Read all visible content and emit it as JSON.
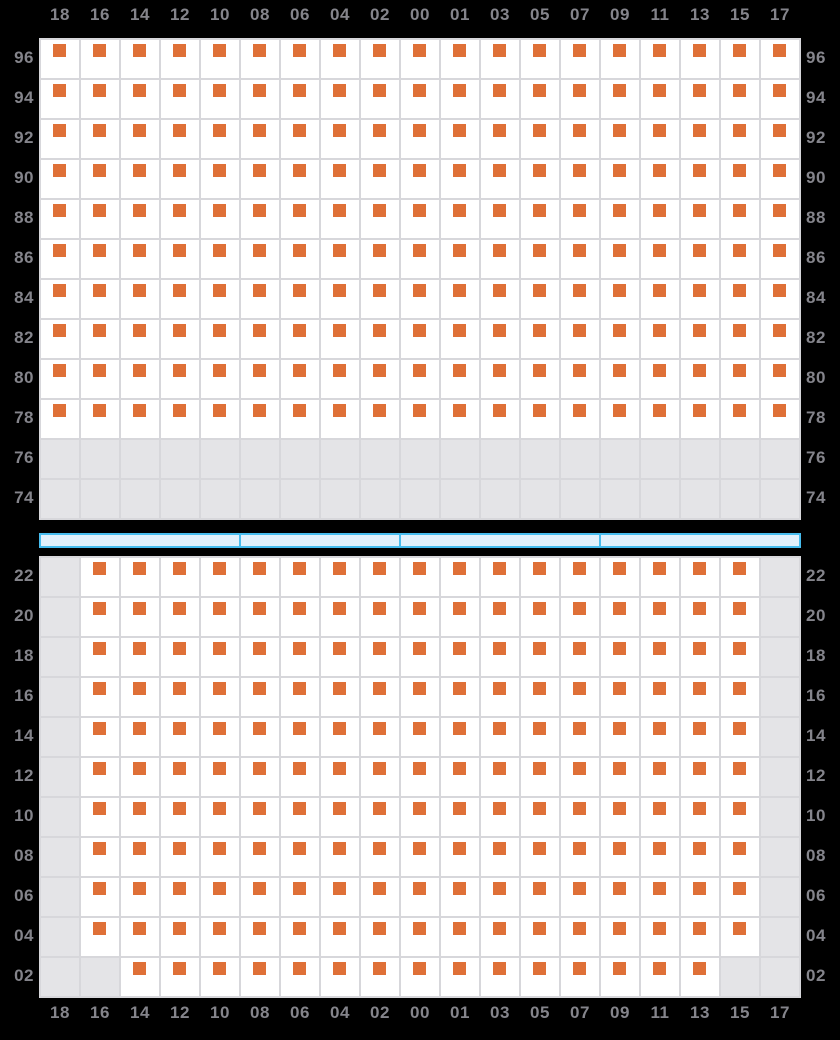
{
  "colors": {
    "background": "#000000",
    "cell_fill": "#ffffff",
    "disabled_cell_fill": "#e4e4e7",
    "grid_line": "#d7d7db",
    "marker": "#df7037",
    "axis_label": "#84848b",
    "road_fill": "#e1f1fc",
    "road_border": "#47bdef"
  },
  "chart_data": {
    "type": "heatmap",
    "title": "",
    "column_labels": [
      "18",
      "16",
      "14",
      "12",
      "10",
      "08",
      "06",
      "04",
      "02",
      "00",
      "01",
      "03",
      "05",
      "07",
      "09",
      "11",
      "13",
      "15",
      "17"
    ],
    "cell_legend": {
      "M": "orange-marker-in-white-cell",
      "G": "gray-empty-cell"
    },
    "layout_hints": {
      "column_labels_shown": "above top panel and below bottom panel",
      "row_labels_shown": "left and right of both panels",
      "grid": "on",
      "road_bar_between_panels": true
    },
    "panels": [
      {
        "id": "north",
        "row_labels": [
          "96",
          "94",
          "92",
          "90",
          "88",
          "86",
          "84",
          "82",
          "80",
          "78",
          "76",
          "74"
        ],
        "rows": [
          "MMMMMMMMMMMMMMMMMMM",
          "MMMMMMMMMMMMMMMMMMM",
          "MMMMMMMMMMMMMMMMMMM",
          "MMMMMMMMMMMMMMMMMMM",
          "MMMMMMMMMMMMMMMMMMM",
          "MMMMMMMMMMMMMMMMMMM",
          "MMMMMMMMMMMMMMMMMMM",
          "MMMMMMMMMMMMMMMMMMM",
          "MMMMMMMMMMMMMMMMMMM",
          "MMMMMMMMMMMMMMMMMMM",
          "GGGGGGGGGGGGGGGGGGG",
          "GGGGGGGGGGGGGGGGGGG"
        ]
      },
      {
        "id": "south",
        "row_labels": [
          "22",
          "20",
          "18",
          "16",
          "14",
          "12",
          "10",
          "08",
          "06",
          "04",
          "02"
        ],
        "rows": [
          "GMMMMMMMMMMMMMMMMMG",
          "GMMMMMMMMMMMMMMMMMG",
          "GMMMMMMMMMMMMMMMMMG",
          "GMMMMMMMMMMMMMMMMMG",
          "GMMMMMMMMMMMMMMMMMG",
          "GMMMMMMMMMMMMMMMMMG",
          "GMMMMMMMMMMMMMMMMMG",
          "GMMMMMMMMMMMMMMMMMG",
          "GMMMMMMMMMMMMMMMMMG",
          "GMMMMMMMMMMMMMMMMMG",
          "GGMMMMMMMMMMMMMMMGG"
        ]
      }
    ],
    "road": {
      "segment_cell_counts": [
        5,
        4,
        5,
        5
      ]
    }
  }
}
